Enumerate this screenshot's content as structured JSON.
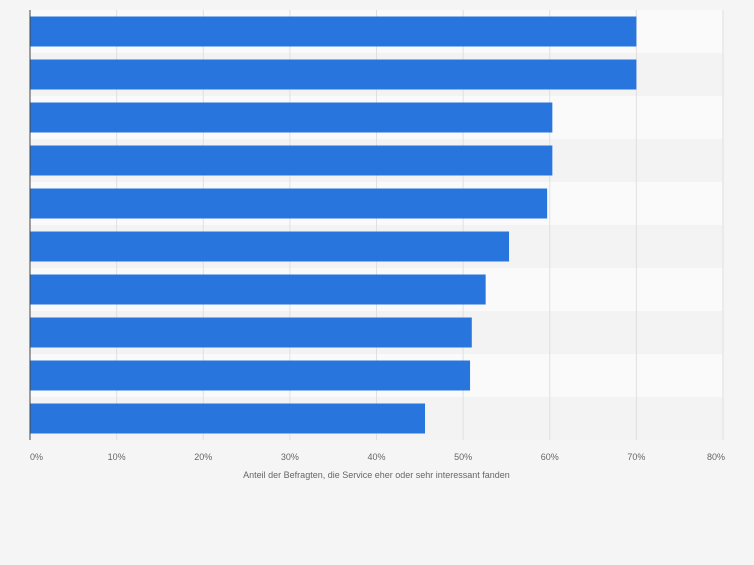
{
  "chart_data": {
    "type": "bar",
    "orientation": "horizontal",
    "categories": [
      "",
      "",
      "",
      "",
      "",
      "",
      "",
      "",
      "",
      ""
    ],
    "values": [
      70,
      70,
      60.3,
      60.3,
      59.7,
      55.3,
      52.6,
      51.0,
      50.8,
      45.6
    ],
    "xlabel": "Anteil der Befragten, die Service eher oder sehr interessant fanden",
    "ylabel": "",
    "xlim": [
      0,
      80
    ],
    "ticks": [
      "0%",
      "10%",
      "20%",
      "30%",
      "40%",
      "50%",
      "60%",
      "70%",
      "80%"
    ],
    "grid": true,
    "colors": {
      "bar": "#2876dd",
      "background": "#f5f5f5",
      "band_light": "#fafafa",
      "band_dark": "#f3f3f3",
      "gridline": "#e0e0e0",
      "axis": "#444444",
      "tick_text": "#666666"
    }
  }
}
